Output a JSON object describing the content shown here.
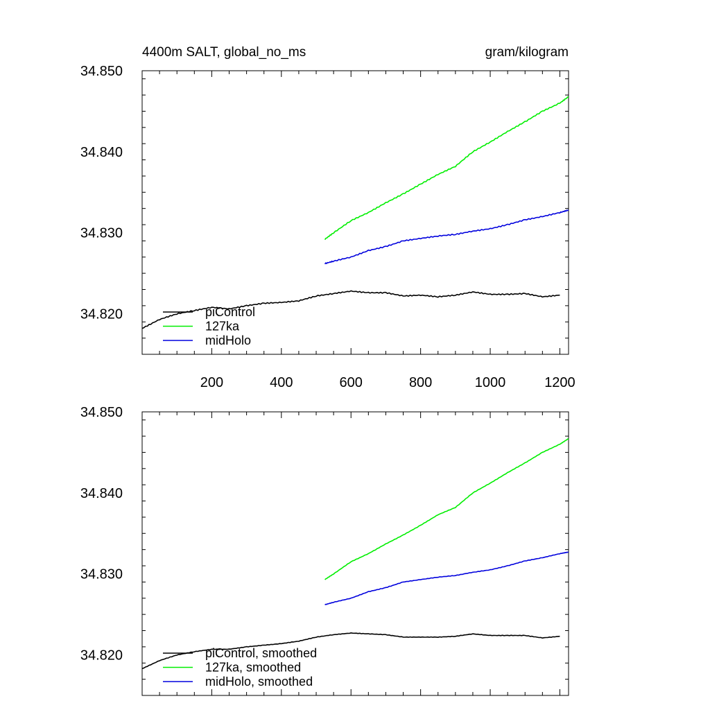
{
  "chart_data": [
    {
      "type": "line",
      "title": "4400m SALT, global_no_ms",
      "units": "gram/kilogram",
      "xlabel": "",
      "ylabel": "",
      "xlim": [
        0,
        1225
      ],
      "ylim": [
        34.815,
        34.85
      ],
      "xticks": [
        200,
        400,
        600,
        800,
        1000,
        1200
      ],
      "xtick_labels": [
        "200",
        "400",
        "600",
        "800",
        "1000",
        "1200"
      ],
      "yticks": [
        34.82,
        34.83,
        34.84,
        34.85
      ],
      "ytick_labels": [
        "34.820",
        "34.830",
        "34.840",
        "34.850"
      ],
      "grid": false,
      "legend_position": "bottom-left",
      "series": [
        {
          "name": "piControl",
          "color": "#000000",
          "x": [
            0,
            50,
            100,
            150,
            200,
            250,
            300,
            350,
            400,
            450,
            500,
            550,
            600,
            650,
            700,
            750,
            800,
            850,
            900,
            950,
            1000,
            1050,
            1100,
            1150,
            1200
          ],
          "y": [
            34.8182,
            34.8193,
            34.82,
            34.8204,
            34.8208,
            34.8206,
            34.821,
            34.8213,
            34.8214,
            34.8216,
            34.8222,
            34.8225,
            34.8228,
            34.8226,
            34.8226,
            34.8222,
            34.8223,
            34.8221,
            34.8223,
            34.8227,
            34.8224,
            34.8224,
            34.8225,
            34.8221,
            34.8223
          ]
        },
        {
          "name": "127ka",
          "color": "#00ee00",
          "x": [
            525,
            550,
            600,
            650,
            700,
            750,
            800,
            850,
            900,
            950,
            1000,
            1050,
            1100,
            1150,
            1200,
            1225
          ],
          "y": [
            34.8292,
            34.83,
            34.8315,
            34.8325,
            34.8337,
            34.8348,
            34.836,
            34.8372,
            34.8382,
            34.84,
            34.8412,
            34.8425,
            34.8437,
            34.845,
            34.846,
            34.8468
          ]
        },
        {
          "name": "midHolo",
          "color": "#0000dd",
          "x": [
            525,
            550,
            600,
            650,
            700,
            750,
            800,
            850,
            900,
            950,
            1000,
            1050,
            1100,
            1150,
            1200,
            1225
          ],
          "y": [
            34.8262,
            34.8265,
            34.827,
            34.8278,
            34.8283,
            34.829,
            34.8293,
            34.8296,
            34.8298,
            34.8302,
            34.8305,
            34.831,
            34.8316,
            34.832,
            34.8325,
            34.8328
          ]
        }
      ]
    },
    {
      "type": "line",
      "title": "",
      "units": "",
      "xlabel": "",
      "ylabel": "",
      "xlim": [
        0,
        1225
      ],
      "ylim": [
        34.815,
        34.85
      ],
      "xticks": [
        200,
        400,
        600,
        800,
        1000,
        1200
      ],
      "xtick_labels": [],
      "yticks": [
        34.82,
        34.83,
        34.84,
        34.85
      ],
      "ytick_labels": [
        "34.820",
        "34.830",
        "34.840",
        "34.850"
      ],
      "grid": false,
      "legend_position": "bottom-left",
      "series": [
        {
          "name": "piControl, smoothed",
          "color": "#000000",
          "x": [
            0,
            50,
            100,
            150,
            200,
            250,
            300,
            350,
            400,
            450,
            500,
            550,
            600,
            650,
            700,
            750,
            800,
            850,
            900,
            950,
            1000,
            1050,
            1100,
            1150,
            1200
          ],
          "y": [
            34.8183,
            34.8193,
            34.82,
            34.8204,
            34.8207,
            34.8207,
            34.821,
            34.8212,
            34.8214,
            34.8217,
            34.8222,
            34.8225,
            34.8227,
            34.8226,
            34.8225,
            34.8222,
            34.8222,
            34.8222,
            34.8223,
            34.8226,
            34.8224,
            34.8224,
            34.8224,
            34.8221,
            34.8223
          ]
        },
        {
          "name": "127ka, smoothed",
          "color": "#00ee00",
          "x": [
            525,
            550,
            600,
            650,
            700,
            750,
            800,
            850,
            900,
            950,
            1000,
            1050,
            1100,
            1150,
            1200,
            1225
          ],
          "y": [
            34.8293,
            34.83,
            34.8315,
            34.8325,
            34.8337,
            34.8348,
            34.836,
            34.8373,
            34.8382,
            34.84,
            34.8412,
            34.8425,
            34.8437,
            34.845,
            34.846,
            34.8467
          ]
        },
        {
          "name": "midHolo, smoothed",
          "color": "#0000dd",
          "x": [
            525,
            550,
            600,
            650,
            700,
            750,
            800,
            850,
            900,
            950,
            1000,
            1050,
            1100,
            1150,
            1200,
            1225
          ],
          "y": [
            34.8262,
            34.8265,
            34.827,
            34.8278,
            34.8283,
            34.829,
            34.8293,
            34.8296,
            34.8298,
            34.8302,
            34.8305,
            34.831,
            34.8316,
            34.832,
            34.8325,
            34.8327
          ]
        }
      ]
    }
  ]
}
